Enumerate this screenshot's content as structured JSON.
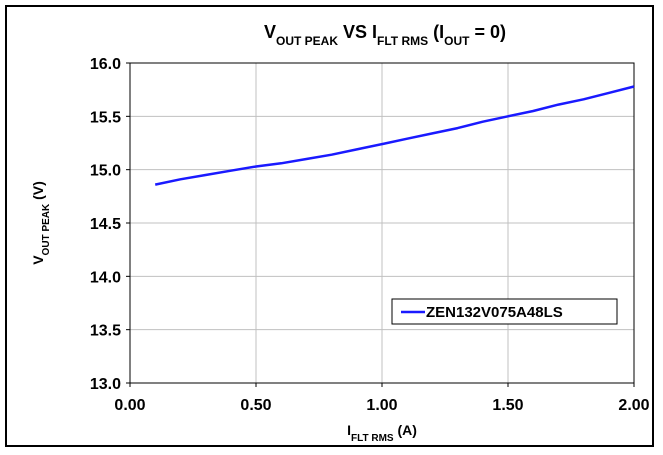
{
  "chart_data": {
    "type": "line",
    "title": {
      "parts": [
        {
          "text": "V",
          "sub": false
        },
        {
          "text": "OUT PEAK",
          "sub": true
        },
        {
          "text": " VS I",
          "sub": false
        },
        {
          "text": "FLT RMS",
          "sub": true
        },
        {
          "text": " (I",
          "sub": false
        },
        {
          "text": "OUT",
          "sub": true
        },
        {
          "text": " = 0)",
          "sub": false
        }
      ]
    },
    "xlabel": {
      "parts": [
        {
          "text": "I",
          "sub": false
        },
        {
          "text": "FLT RMS",
          "sub": true
        },
        {
          "text": " (A)",
          "sub": false
        }
      ]
    },
    "ylabel": {
      "parts": [
        {
          "text": "V",
          "sub": false
        },
        {
          "text": "OUT PEAK",
          "sub": true
        },
        {
          "text": " (V)",
          "sub": false
        }
      ]
    },
    "xlim": [
      0,
      2
    ],
    "ylim": [
      13,
      16
    ],
    "xticks": [
      "0.00",
      "0.50",
      "1.00",
      "1.50",
      "2.00"
    ],
    "yticks": [
      "13.0",
      "13.5",
      "14.0",
      "14.5",
      "15.0",
      "15.5",
      "16.0"
    ],
    "grid": true,
    "legend_position": "bottom-right",
    "series": [
      {
        "name": "ZEN132V075A48LS",
        "color": "#1a1aff",
        "x": [
          0.1,
          0.2,
          0.3,
          0.4,
          0.5,
          0.6,
          0.7,
          0.8,
          0.9,
          1.0,
          1.1,
          1.2,
          1.3,
          1.4,
          1.5,
          1.6,
          1.7,
          1.8,
          1.9,
          2.0
        ],
        "y": [
          14.86,
          14.91,
          14.95,
          14.99,
          15.03,
          15.06,
          15.1,
          15.14,
          15.19,
          15.24,
          15.29,
          15.34,
          15.39,
          15.45,
          15.5,
          15.55,
          15.61,
          15.66,
          15.72,
          15.78
        ]
      }
    ]
  }
}
